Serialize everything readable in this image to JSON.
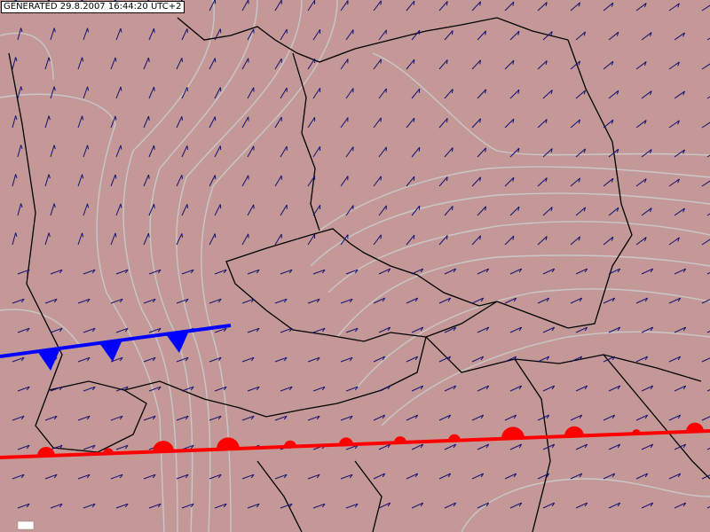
{
  "header": {
    "generated": "GENERATED 29.8.2007 16:44:20 UTC+2"
  }
}
